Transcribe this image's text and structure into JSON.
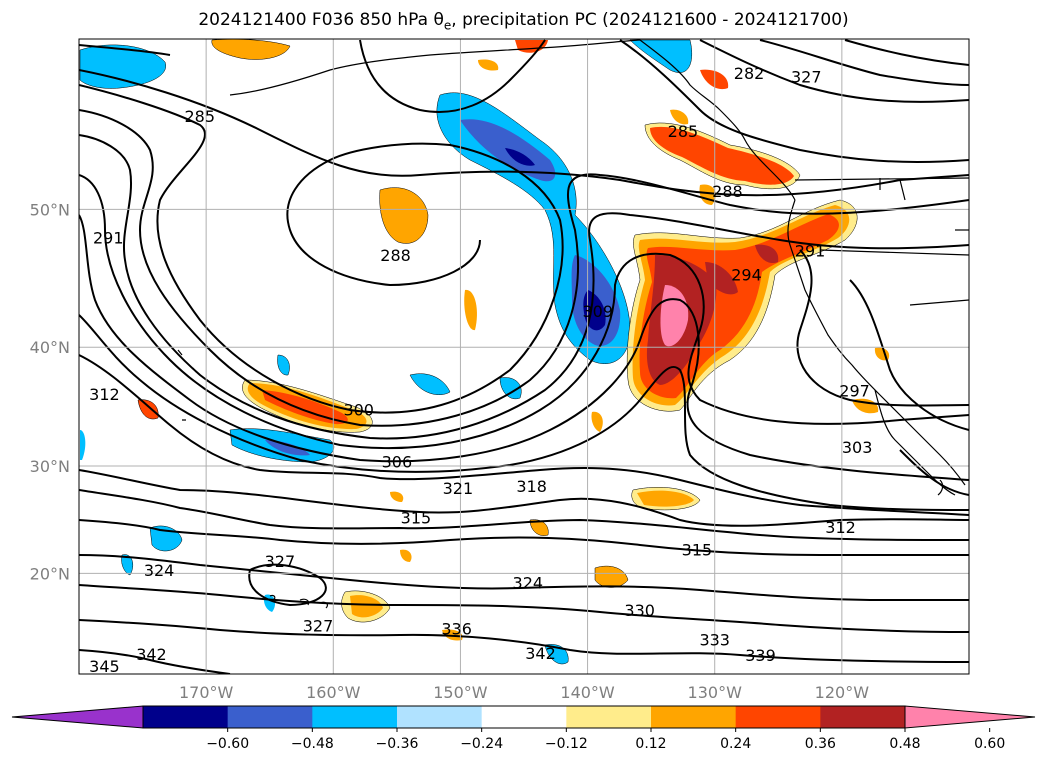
{
  "title": {
    "prefix": "2024121400 F036 850 hPa θ",
    "sub": "e",
    "suffix": ", precipitation PC (2024121600 - 2024121700)"
  },
  "map": {
    "projection": "Mercator",
    "lon_range": [
      -180,
      -110
    ],
    "lat_range": [
      10,
      60
    ],
    "lat_ticks": [
      "20°N",
      "30°N",
      "40°N",
      "50°N"
    ],
    "lon_ticks": [
      "170°W",
      "160°W",
      "150°W",
      "140°W",
      "130°W",
      "120°W"
    ],
    "grid": true,
    "contour_variable": "850 hPa equivalent potential temperature (K)",
    "contour_labels": [
      {
        "text": "285",
        "lon": -170.5,
        "lat": 55.8
      },
      {
        "text": "288",
        "lon": -155.1,
        "lat": 46.9
      },
      {
        "text": "291",
        "lon": -177.7,
        "lat": 48.1
      },
      {
        "text": "300",
        "lon": -158.0,
        "lat": 34.9
      },
      {
        "text": "306",
        "lon": -155.0,
        "lat": 30.4
      },
      {
        "text": "309",
        "lon": -139.2,
        "lat": 42.8
      },
      {
        "text": "312",
        "lon": -178.0,
        "lat": 36.2
      },
      {
        "text": "321",
        "lon": -150.2,
        "lat": 28.0
      },
      {
        "text": "318",
        "lon": -144.4,
        "lat": 28.2
      },
      {
        "text": "315",
        "lon": -153.5,
        "lat": 25.3
      },
      {
        "text": "315",
        "lon": -131.4,
        "lat": 22.3
      },
      {
        "text": "312",
        "lon": -120.1,
        "lat": 24.4
      },
      {
        "text": "324",
        "lon": -173.7,
        "lat": 20.3
      },
      {
        "text": "327",
        "lon": -164.2,
        "lat": 21.2
      },
      {
        "text": "324",
        "lon": -144.7,
        "lat": 19.1
      },
      {
        "text": "327",
        "lon": -161.2,
        "lat": 14.9
      },
      {
        "text": "336",
        "lon": -150.3,
        "lat": 14.6
      },
      {
        "text": "330",
        "lon": -135.9,
        "lat": 16.4
      },
      {
        "text": "333",
        "lon": -130.0,
        "lat": 13.5
      },
      {
        "text": "339",
        "lon": -126.4,
        "lat": 11.9
      },
      {
        "text": "342",
        "lon": -174.3,
        "lat": 12.0
      },
      {
        "text": "345",
        "lon": -178.0,
        "lat": 10.8
      },
      {
        "text": "342",
        "lon": -143.7,
        "lat": 12.1
      },
      {
        "text": "294",
        "lon": -127.5,
        "lat": 45.5
      },
      {
        "text": "291",
        "lon": -122.5,
        "lat": 47.2
      },
      {
        "text": "297",
        "lon": -119.0,
        "lat": 36.5
      },
      {
        "text": "303",
        "lon": -118.8,
        "lat": 31.7
      },
      {
        "text": "282",
        "lon": -127.3,
        "lat": 58.2
      },
      {
        "text": "285",
        "lon": -132.5,
        "lat": 54.9
      },
      {
        "text": "327",
        "lon": -122.8,
        "lat": 58.0
      },
      {
        "text": "288",
        "lon": -129.0,
        "lat": 51.2
      }
    ]
  },
  "colorbar": {
    "variable": "precipitation PC",
    "ticks": [
      "−0.60",
      "−0.48",
      "−0.36",
      "−0.24",
      "−0.12",
      "0.12",
      "0.24",
      "0.36",
      "0.48",
      "0.60"
    ],
    "bounds": [
      -0.72,
      -0.6,
      -0.48,
      -0.36,
      -0.24,
      -0.12,
      0.12,
      0.24,
      0.36,
      0.48,
      0.6,
      0.72
    ],
    "colors": [
      "#9932cc",
      "#00008b",
      "#3a5fcd",
      "#00bfff",
      "#b0e2ff",
      "#ffffff",
      "#ffec8b",
      "#ffa500",
      "#ff4500",
      "#b22222",
      "#ff82ab"
    ],
    "extend": "both"
  },
  "colors": {
    "contour": "#000000",
    "coast": "#000000",
    "grid": "#b0b0b0",
    "tick_label": "#7f7f7f"
  }
}
